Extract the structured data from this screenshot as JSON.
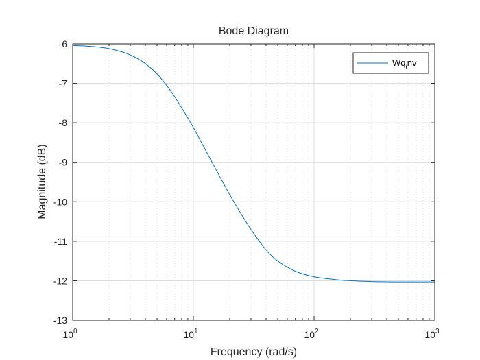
{
  "chart_data": {
    "type": "line",
    "title": "Bode Diagram",
    "xlabel": "Frequency  (rad/s)",
    "ylabel": "Magnitude (dB)",
    "xscale": "log",
    "xlim": [
      1,
      1000
    ],
    "ylim": [
      -13,
      -6
    ],
    "grid": true,
    "legend_position": "top-right",
    "x_ticks": [
      {
        "base": "10",
        "exp": "0",
        "value": 1
      },
      {
        "base": "10",
        "exp": "1",
        "value": 10
      },
      {
        "base": "10",
        "exp": "2",
        "value": 100
      },
      {
        "base": "10",
        "exp": "3",
        "value": 1000
      }
    ],
    "y_ticks": [
      {
        "label": "-6",
        "value": -6
      },
      {
        "label": "-7",
        "value": -7
      },
      {
        "label": "-8",
        "value": -8
      },
      {
        "label": "-9",
        "value": -9
      },
      {
        "label": "-10",
        "value": -10
      },
      {
        "label": "-11",
        "value": -11
      },
      {
        "label": "-12",
        "value": -12
      },
      {
        "label": "-13",
        "value": -13
      }
    ],
    "series": [
      {
        "name": "Wqinv",
        "legend_main": "Wq",
        "legend_sub": "i",
        "legend_tail": "nv",
        "color": "#0072bd",
        "x": [
          1,
          1.5,
          2,
          3,
          4,
          5,
          6,
          7,
          8,
          10,
          12,
          15,
          20,
          25,
          30,
          40,
          50,
          70,
          100,
          150,
          200,
          300,
          500,
          700,
          1000
        ],
        "y": [
          -6.04,
          -6.07,
          -6.12,
          -6.28,
          -6.5,
          -6.76,
          -7.05,
          -7.34,
          -7.62,
          -8.12,
          -8.57,
          -9.12,
          -9.82,
          -10.32,
          -10.7,
          -11.22,
          -11.5,
          -11.76,
          -11.9,
          -11.97,
          -12.0,
          -12.02,
          -12.03,
          -12.03,
          -12.03
        ]
      }
    ]
  }
}
